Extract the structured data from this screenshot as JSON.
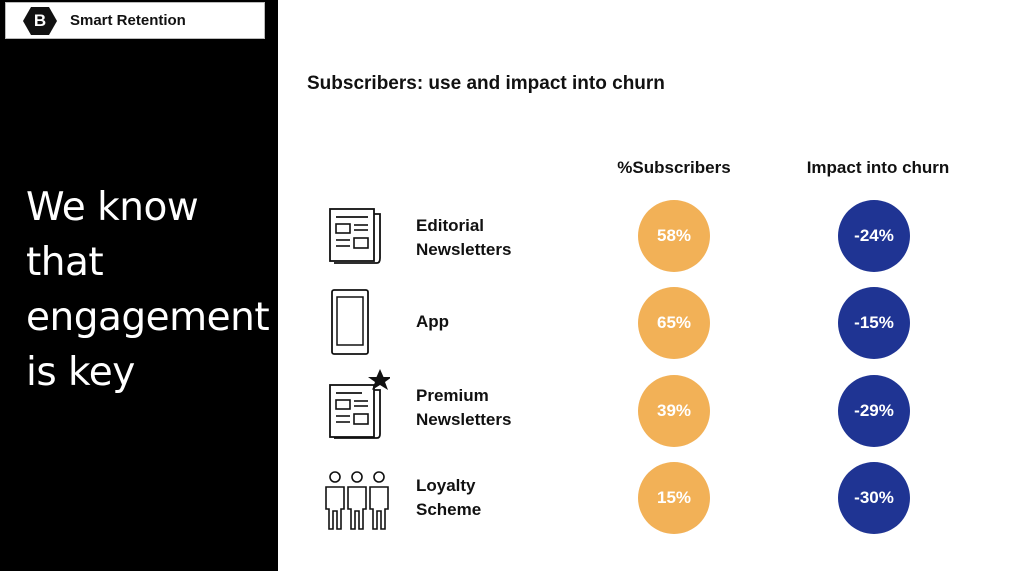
{
  "brand": {
    "logo_letter": "B",
    "name": "Smart Retention"
  },
  "headline": "We know that engagement is key",
  "slide": {
    "title": "Subscribers: use and impact into churn",
    "col_subscribers": "%Subscribers",
    "col_churn": "Impact into churn"
  },
  "rows": [
    {
      "label_line1": "Editorial",
      "label_line2": "Newsletters",
      "icon": "newspaper-icon",
      "subscribers": "58%",
      "churn": "-24%"
    },
    {
      "label_line1": "App",
      "label_line2": "",
      "icon": "smartphone-icon",
      "subscribers": "65%",
      "churn": "-15%"
    },
    {
      "label_line1": "Premium",
      "label_line2": "Newsletters",
      "icon": "premium-newspaper-icon",
      "subscribers": "39%",
      "churn": "-29%"
    },
    {
      "label_line1": "Loyalty",
      "label_line2": "Scheme",
      "icon": "people-group-icon",
      "subscribers": "15%",
      "churn": "-30%"
    }
  ],
  "colors": {
    "subscribers_bubble": "#f2b157",
    "churn_bubble": "#1f3493",
    "panel": "#000000"
  }
}
